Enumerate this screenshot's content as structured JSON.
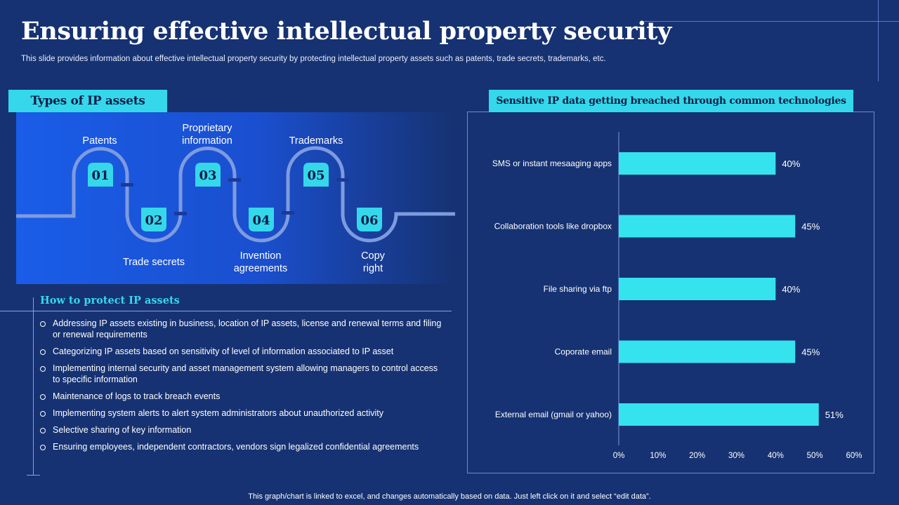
{
  "slide": {
    "title": "Ensuring effective intellectual property security",
    "subtitle": "This slide provides information about effective intellectual property security by protecting intellectual property assets such as patents, trade secrets, trademarks, etc.",
    "footer": "This graph/chart is linked to excel, and changes automatically based on data. Just left click on it and select “edit data”."
  },
  "types": {
    "heading": "Types of IP assets",
    "steps": [
      {
        "num": "01",
        "label": "Patents"
      },
      {
        "num": "02",
        "label": "Trade secrets"
      },
      {
        "num": "03",
        "label": "Proprietary information"
      },
      {
        "num": "04",
        "label": "Invention agreements"
      },
      {
        "num": "05",
        "label": "Trademarks"
      },
      {
        "num": "06",
        "label": "Copy right"
      }
    ]
  },
  "protect": {
    "heading": "How to protect IP assets",
    "items": [
      "Addressing IP assets existing in business, location of IP assets, license and renewal terms and filing or renewal requirements",
      "Categorizing IP assets based on sensitivity of level of information associated to IP asset",
      "Implementing internal security and asset management system allowing managers to control access to specific information",
      "Maintenance of logs to track breach events",
      "Implementing system alerts to alert system administrators about unauthorized activity",
      "Selective sharing of key information",
      "Ensuring employees, independent contractors, vendors sign legalized confidential agreements"
    ]
  },
  "colors": {
    "background": "#163272",
    "accent": "#35d8ea",
    "bar": "#35e3ee",
    "panel_blue": "#1a5de8"
  },
  "chart_data": {
    "type": "bar",
    "orientation": "horizontal",
    "title": "Sensitive IP data getting breached through common technologies",
    "categories": [
      "SMS or instant mesaaging apps",
      "Collaboration tools like dropbox",
      "File sharing via ftp",
      "Coporate email",
      "External email (gmail or yahoo)"
    ],
    "values": [
      40,
      45,
      40,
      45,
      51
    ],
    "value_labels": [
      "40%",
      "45%",
      "40%",
      "45%",
      "51%"
    ],
    "xlim": [
      0,
      60
    ],
    "xticks": [
      "0%",
      "10%",
      "20%",
      "30%",
      "40%",
      "50%",
      "60%"
    ],
    "grid": false
  }
}
